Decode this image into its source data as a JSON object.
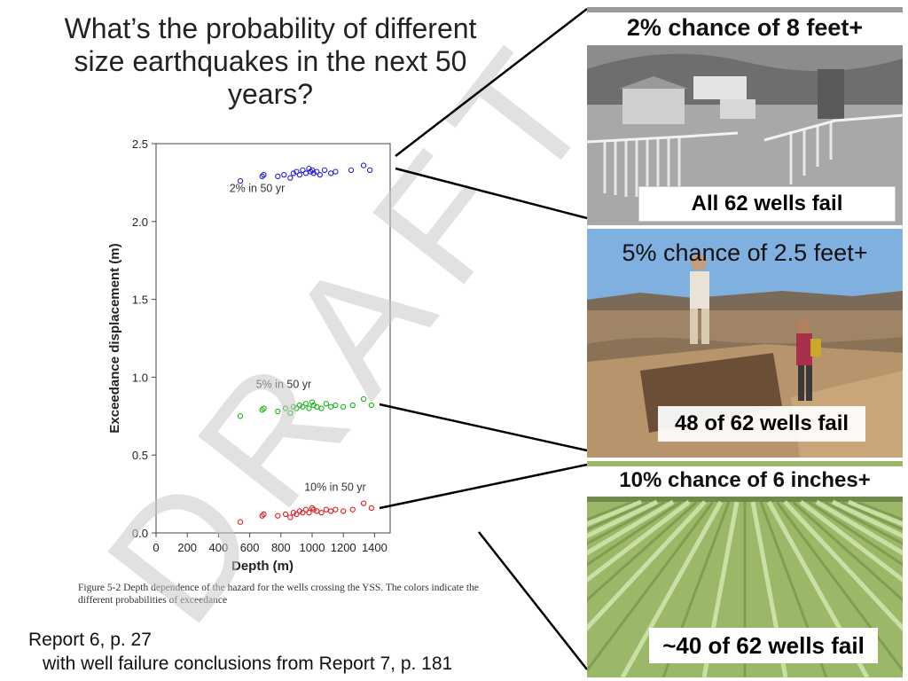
{
  "title": "What’s the probability of different size earthquakes in the next 50 years?",
  "caption": "Figure 5-2 Depth dependence of the hazard for the wells crossing the YSS. The colors indicate the different probabilities of exceedance",
  "source": {
    "line1": "Report 6, p. 27",
    "line2": "with well failure conclusions from Report 7, p. 181"
  },
  "watermark": "DRAFT",
  "panels": [
    {
      "headline": "2% chance of 8 feet+",
      "result": "All 62 wells fail",
      "photo": "farm-buildings-fence-photo"
    },
    {
      "headline": "5% chance of 2.5 feet+",
      "result": "48 of 62 wells fail",
      "photo": "hikers-trench-photo"
    },
    {
      "headline": "10% chance of 6 inches+",
      "result": "~40 of 62 wells fail",
      "photo": "crop-field-photo"
    }
  ],
  "colors": {
    "series_2pct": "#1f1fd6",
    "series_5pct": "#19b419",
    "series_10pct": "#e01b1b",
    "watermark": "#c8c8c8"
  },
  "chart_data": {
    "type": "scatter",
    "xlabel": "Depth (m)",
    "ylabel": "Exceedance displacement (m)",
    "xlim": [
      0,
      1500
    ],
    "ylim": [
      0,
      2.5
    ],
    "xticks": [
      0,
      200,
      400,
      600,
      800,
      1000,
      1200,
      1400
    ],
    "yticks": [
      0.0,
      0.5,
      1.0,
      1.5,
      2.0,
      2.5
    ],
    "ytick_labels": [
      "0.0",
      "0.5",
      "1.0",
      "1.5",
      "2.0",
      "2.5"
    ],
    "grid": false,
    "series": [
      {
        "name": "2% in 50 yr",
        "color": "#1f1fd6",
        "x": [
          540,
          680,
          690,
          780,
          820,
          860,
          880,
          900,
          920,
          940,
          960,
          980,
          990,
          1000,
          1010,
          1030,
          1050,
          1080,
          1120,
          1150,
          1250,
          1330,
          1370
        ],
        "y": [
          2.26,
          2.29,
          2.3,
          2.29,
          2.3,
          2.28,
          2.31,
          2.32,
          2.3,
          2.33,
          2.31,
          2.34,
          2.32,
          2.33,
          2.31,
          2.32,
          2.3,
          2.33,
          2.31,
          2.32,
          2.33,
          2.36,
          2.33
        ]
      },
      {
        "name": "5% in 50 yr",
        "color": "#19b419",
        "x": [
          540,
          680,
          690,
          780,
          830,
          860,
          880,
          900,
          920,
          940,
          960,
          980,
          1000,
          1010,
          1030,
          1060,
          1090,
          1120,
          1150,
          1200,
          1260,
          1330,
          1380
        ],
        "y": [
          0.75,
          0.79,
          0.8,
          0.78,
          0.8,
          0.77,
          0.81,
          0.8,
          0.82,
          0.81,
          0.83,
          0.8,
          0.84,
          0.82,
          0.81,
          0.8,
          0.83,
          0.81,
          0.82,
          0.81,
          0.82,
          0.86,
          0.82
        ]
      },
      {
        "name": "10% in 50 yr",
        "color": "#e01b1b",
        "x": [
          540,
          680,
          690,
          780,
          830,
          860,
          880,
          900,
          920,
          940,
          960,
          980,
          1000,
          1010,
          1030,
          1060,
          1090,
          1120,
          1150,
          1200,
          1260,
          1330,
          1380
        ],
        "y": [
          0.07,
          0.11,
          0.12,
          0.11,
          0.12,
          0.1,
          0.13,
          0.12,
          0.14,
          0.13,
          0.15,
          0.13,
          0.16,
          0.15,
          0.14,
          0.13,
          0.15,
          0.14,
          0.15,
          0.14,
          0.15,
          0.19,
          0.16
        ]
      }
    ],
    "annotations": [
      {
        "text": "2% in 50 yr",
        "x": 470,
        "y": 2.19
      },
      {
        "text": "5% in 50 yr",
        "x": 640,
        "y": 0.93
      },
      {
        "text": "10% in 50 yr",
        "x": 950,
        "y": 0.27
      }
    ]
  }
}
